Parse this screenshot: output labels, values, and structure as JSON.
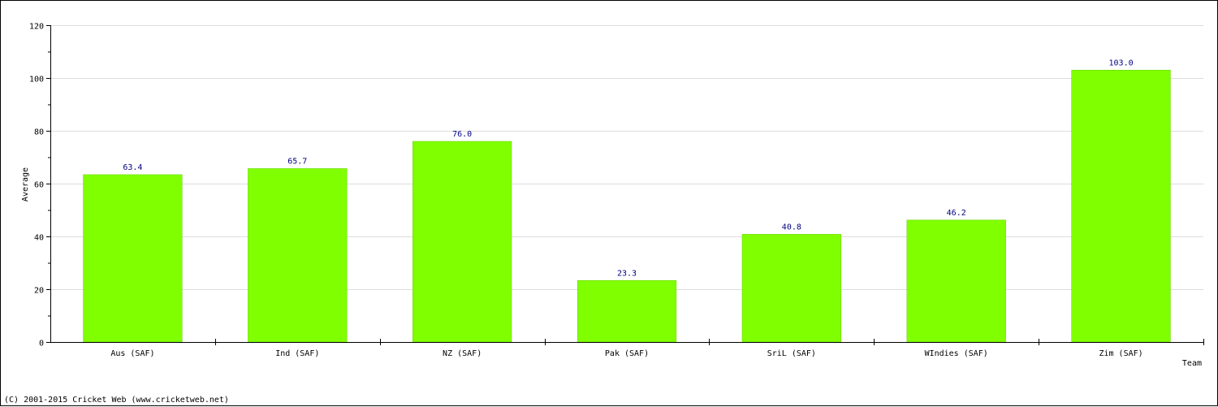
{
  "colors": {
    "bar_fill": "#80ff00",
    "gridline": "#dddddd",
    "axis": "#000000",
    "data_label": "#000080",
    "background": "#ffffff"
  },
  "chart_data": {
    "type": "bar",
    "categories": [
      "Aus (SAF)",
      "Ind (SAF)",
      "NZ (SAF)",
      "Pak (SAF)",
      "SriL (SAF)",
      "WIndies (SAF)",
      "Zim (SAF)"
    ],
    "values": [
      63.4,
      65.7,
      76.0,
      23.3,
      40.8,
      46.2,
      103.0
    ],
    "value_labels": [
      "63.4",
      "65.7",
      "76.0",
      "23.3",
      "40.8",
      "46.2",
      "103.0"
    ],
    "xlabel": "Team",
    "ylabel": "Average",
    "ylim": [
      0,
      120
    ],
    "yticks": [
      0,
      20,
      40,
      60,
      80,
      100,
      120
    ],
    "grid": true,
    "legend": "none"
  },
  "footer": {
    "copyright": "(C) 2001-2015 Cricket Web (www.cricketweb.net)"
  }
}
